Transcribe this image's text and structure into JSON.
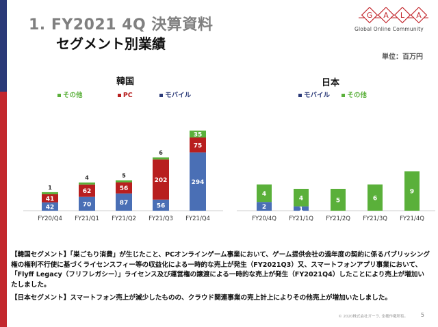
{
  "header": {
    "title": "1. FY2021 4Q 決算資料",
    "subtitle": "セグメント別業績",
    "unit": "単位：百万円",
    "logo_letters": [
      "G",
      "A",
      "L",
      "A"
    ],
    "logo_tagline": "Global Online Community"
  },
  "colors": {
    "brand_blue": "#2b3a78",
    "brand_red": "#c3282e",
    "mobile": "#4a6fb5",
    "pc": "#b81f1f",
    "other": "#5ab03a"
  },
  "chart_data": [
    {
      "type": "bar",
      "title": "韓国",
      "categories": [
        "FY20/Q4",
        "FY21/Q1",
        "FY21/Q2",
        "FY21/Q3",
        "FY21/Q4"
      ],
      "series": [
        {
          "name": "モバイル",
          "values": [
            42,
            70,
            87,
            56,
            294
          ]
        },
        {
          "name": "PC",
          "values": [
            41,
            62,
            56,
            202,
            75
          ]
        },
        {
          "name": "その他",
          "values": [
            1,
            4,
            5,
            6,
            35
          ]
        }
      ],
      "legend_order": [
        "その他",
        "PC",
        "モバイル"
      ],
      "stacked": true
    },
    {
      "type": "bar",
      "title": "日本",
      "categories": [
        "FY20/4Q",
        "FY21/1Q",
        "FY21/2Q",
        "FY21/3Q",
        "FY21/4Q"
      ],
      "series": [
        {
          "name": "モバイル",
          "values": [
            2,
            1,
            0,
            0,
            0
          ]
        },
        {
          "name": "その他",
          "values": [
            4,
            4,
            5,
            6,
            9
          ]
        }
      ],
      "legend_order": [
        "モバイル",
        "その他"
      ],
      "stacked": true
    }
  ],
  "notes": {
    "korea": "【韓国セグメント】「巣ごもり消費」が生じたこと、PCオンラインゲーム事業において、ゲーム提供会社の過年度の契約に係るパブリッシング権の権利不行使に基づくライセンスフィー等の収益化による一時的な売上が発生（FY2021Q3）又、スマートフォンアプリ事業において、「Flyff Legacy（フリフレガシー）」ライセンス及び運営権の譲渡による一時的な売上が発生（FY2021Q4）したことにより売上が増加いたしました。",
    "japan": "【日本セグメント】スマートフォン売上が減少したものの、クラウド関連事業の売上計上によりその他売上が増加いたしました。"
  },
  "footer": {
    "copyright": "© 2020株式会社ガーラ, 全権作権所有。",
    "page": "5"
  }
}
